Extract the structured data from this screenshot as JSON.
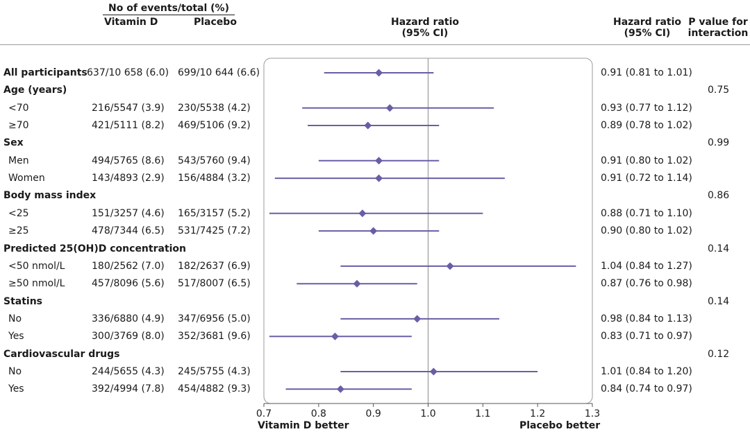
{
  "headers": {
    "group_title": "No of events/total (%)",
    "vitd": "Vitamin D",
    "placebo": "Placebo",
    "hr_plot": "Hazard ratio\n(95% CI)",
    "hr_col": "Hazard ratio\n(95% CI)",
    "pval": "P value for\ninteraction"
  },
  "rows": [
    {
      "label": "All participants",
      "header": true,
      "vitd": "637/10 658 (6.0)",
      "placebo": "699/10 644 (6.6)",
      "hr_text": "0.91 (0.81 to 1.01)",
      "p": ""
    },
    {
      "label": "Age (years)",
      "header": true,
      "vitd": "",
      "placebo": "",
      "hr_text": "",
      "p": "0.75"
    },
    {
      "label": "<70",
      "header": false,
      "vitd": "216/5547 (3.9)",
      "placebo": "230/5538 (4.2)",
      "hr_text": "0.93 (0.77 to 1.12)",
      "p": ""
    },
    {
      "label": "≥70",
      "header": false,
      "vitd": "421/5111 (8.2)",
      "placebo": "469/5106 (9.2)",
      "hr_text": "0.89 (0.78 to 1.02)",
      "p": ""
    },
    {
      "label": "Sex",
      "header": true,
      "vitd": "",
      "placebo": "",
      "hr_text": "",
      "p": "0.99"
    },
    {
      "label": "Men",
      "header": false,
      "vitd": "494/5765 (8.6)",
      "placebo": "543/5760 (9.4)",
      "hr_text": "0.91 (0.80 to 1.02)",
      "p": ""
    },
    {
      "label": "Women",
      "header": false,
      "vitd": "143/4893 (2.9)",
      "placebo": "156/4884 (3.2)",
      "hr_text": "0.91 (0.72 to 1.14)",
      "p": ""
    },
    {
      "label": "Body mass index",
      "header": true,
      "vitd": "",
      "placebo": "",
      "hr_text": "",
      "p": "0.86"
    },
    {
      "label": "<25",
      "header": false,
      "vitd": "151/3257 (4.6)",
      "placebo": "165/3157 (5.2)",
      "hr_text": "0.88 (0.71 to 1.10)",
      "p": ""
    },
    {
      "label": "≥25",
      "header": false,
      "vitd": "478/7344 (6.5)",
      "placebo": "531/7425 (7.2)",
      "hr_text": "0.90 (0.80 to 1.02)",
      "p": ""
    },
    {
      "label": "Predicted 25(OH)D concentration",
      "header": true,
      "vitd": "",
      "placebo": "",
      "hr_text": "",
      "p": "0.14"
    },
    {
      "label": "<50 nmol/L",
      "header": false,
      "vitd": "180/2562 (7.0)",
      "placebo": "182/2637 (6.9)",
      "hr_text": "1.04 (0.84 to 1.27)",
      "p": ""
    },
    {
      "label": "≥50 nmol/L",
      "header": false,
      "vitd": "457/8096 (5.6)",
      "placebo": "517/8007 (6.5)",
      "hr_text": "0.87 (0.76 to 0.98)",
      "p": ""
    },
    {
      "label": "Statins",
      "header": true,
      "vitd": "",
      "placebo": "",
      "hr_text": "",
      "p": "0.14"
    },
    {
      "label": "No",
      "header": false,
      "vitd": "336/6880 (4.9)",
      "placebo": "347/6956 (5.0)",
      "hr_text": "0.98 (0.84 to 1.13)",
      "p": ""
    },
    {
      "label": "Yes",
      "header": false,
      "vitd": "300/3769 (8.0)",
      "placebo": "352/3681 (9.6)",
      "hr_text": "0.83 (0.71 to 0.97)",
      "p": ""
    },
    {
      "label": "Cardiovascular drugs",
      "header": true,
      "vitd": "",
      "placebo": "",
      "hr_text": "",
      "p": "0.12"
    },
    {
      "label": "No",
      "header": false,
      "vitd": "244/5655 (4.3)",
      "placebo": "245/5755 (4.3)",
      "hr_text": "1.01 (0.84 to 1.20)",
      "p": ""
    },
    {
      "label": "Yes",
      "header": false,
      "vitd": "392/4994 (7.8)",
      "placebo": "454/4882 (9.3)",
      "hr_text": "0.84 (0.74 to 0.97)",
      "p": ""
    }
  ],
  "chart_data": {
    "type": "forest",
    "xlim": [
      0.7,
      1.3
    ],
    "xticks": [
      "0.7",
      "0.8",
      "0.9",
      "1.0",
      "1.1",
      "1.2",
      "1.3"
    ],
    "reference_line": 1.0,
    "left_label": "Vitamin D better",
    "right_label": "Placebo better",
    "color": "#6a5da6",
    "points": [
      {
        "label": "All participants",
        "hr": 0.91,
        "lo": 0.81,
        "hi": 1.01
      },
      {
        "label": "<70",
        "hr": 0.93,
        "lo": 0.77,
        "hi": 1.12
      },
      {
        "label": "≥70",
        "hr": 0.89,
        "lo": 0.78,
        "hi": 1.02
      },
      {
        "label": "Men",
        "hr": 0.91,
        "lo": 0.8,
        "hi": 1.02
      },
      {
        "label": "Women",
        "hr": 0.91,
        "lo": 0.72,
        "hi": 1.14
      },
      {
        "label": "<25",
        "hr": 0.88,
        "lo": 0.71,
        "hi": 1.1
      },
      {
        "label": "≥25",
        "hr": 0.9,
        "lo": 0.8,
        "hi": 1.02
      },
      {
        "label": "<50 nmol/L",
        "hr": 1.04,
        "lo": 0.84,
        "hi": 1.27
      },
      {
        "label": "≥50 nmol/L",
        "hr": 0.87,
        "lo": 0.76,
        "hi": 0.98
      },
      {
        "label": "No",
        "hr": 0.98,
        "lo": 0.84,
        "hi": 1.13
      },
      {
        "label": "Yes",
        "hr": 0.83,
        "lo": 0.71,
        "hi": 0.97
      },
      {
        "label": "No",
        "hr": 1.01,
        "lo": 0.84,
        "hi": 1.2
      },
      {
        "label": "Yes",
        "hr": 0.84,
        "lo": 0.74,
        "hi": 0.97
      }
    ]
  }
}
